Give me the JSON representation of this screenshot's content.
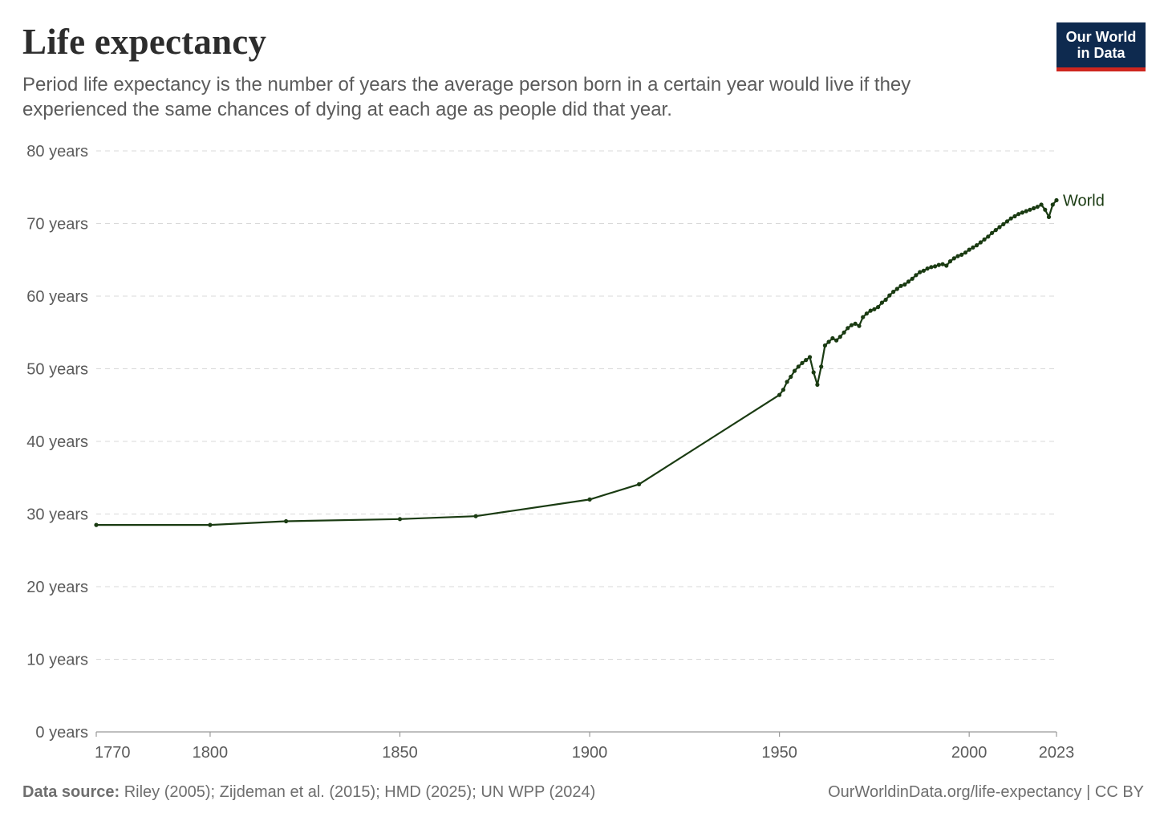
{
  "header": {
    "title": "Life expectancy",
    "subtitle": "Period life expectancy is the number of years the average person born in a certain year would live if they experienced the same chances of dying at each age as people did that year.",
    "logo_line1": "Our World",
    "logo_line2": "in Data"
  },
  "footer": {
    "source_label": "Data source:",
    "source_text": " Riley (2005); Zijdeman et al. (2015); HMD (2025); UN WPP (2024)",
    "url_text": "OurWorldinData.org/life-expectancy | CC BY"
  },
  "colors": {
    "series": "#1a3b12",
    "grid": "#d9d9d9",
    "axis": "#999999",
    "logo_bg": "#0e2a4f",
    "logo_accent": "#ce261e"
  },
  "chart_data": {
    "type": "line",
    "title": "Life expectancy",
    "xlabel": "",
    "ylabel": "",
    "xlim": [
      1770,
      2023
    ],
    "ylim": [
      0,
      80
    ],
    "x_ticks": [
      1770,
      1800,
      1850,
      1900,
      1950,
      2000,
      2023
    ],
    "y_ticks": [
      {
        "value": 0,
        "label": "0 years"
      },
      {
        "value": 10,
        "label": "10 years"
      },
      {
        "value": 20,
        "label": "20 years"
      },
      {
        "value": 30,
        "label": "30 years"
      },
      {
        "value": 40,
        "label": "40 years"
      },
      {
        "value": 50,
        "label": "50 years"
      },
      {
        "value": 60,
        "label": "60 years"
      },
      {
        "value": 70,
        "label": "70 years"
      },
      {
        "value": 80,
        "label": "80 years"
      }
    ],
    "grid": "horizontal dashed",
    "series": [
      {
        "name": "World",
        "x": [
          1770,
          1800,
          1820,
          1850,
          1870,
          1900,
          1913,
          1950,
          1951,
          1952,
          1953,
          1954,
          1955,
          1956,
          1957,
          1958,
          1959,
          1960,
          1961,
          1962,
          1963,
          1964,
          1965,
          1966,
          1967,
          1968,
          1969,
          1970,
          1971,
          1972,
          1973,
          1974,
          1975,
          1976,
          1977,
          1978,
          1979,
          1980,
          1981,
          1982,
          1983,
          1984,
          1985,
          1986,
          1987,
          1988,
          1989,
          1990,
          1991,
          1992,
          1993,
          1994,
          1995,
          1996,
          1997,
          1998,
          1999,
          2000,
          2001,
          2002,
          2003,
          2004,
          2005,
          2006,
          2007,
          2008,
          2009,
          2010,
          2011,
          2012,
          2013,
          2014,
          2015,
          2016,
          2017,
          2018,
          2019,
          2020,
          2021,
          2022,
          2023
        ],
        "y": [
          28.5,
          28.5,
          29.0,
          29.3,
          29.7,
          32.0,
          34.1,
          46.4,
          47.1,
          48.2,
          48.9,
          49.7,
          50.3,
          50.8,
          51.2,
          51.6,
          49.5,
          47.8,
          50.3,
          53.2,
          53.7,
          54.2,
          53.9,
          54.4,
          55.0,
          55.6,
          56.0,
          56.2,
          55.9,
          57.1,
          57.6,
          58.0,
          58.2,
          58.5,
          59.1,
          59.5,
          60.1,
          60.6,
          61.0,
          61.4,
          61.6,
          62.0,
          62.4,
          62.9,
          63.3,
          63.5,
          63.8,
          64.0,
          64.1,
          64.3,
          64.4,
          64.2,
          64.8,
          65.2,
          65.5,
          65.7,
          66.0,
          66.4,
          66.7,
          67.0,
          67.4,
          67.8,
          68.2,
          68.7,
          69.1,
          69.5,
          69.9,
          70.3,
          70.7,
          71.0,
          71.3,
          71.5,
          71.7,
          71.9,
          72.1,
          72.3,
          72.6,
          71.9,
          70.9,
          72.6,
          73.2
        ]
      }
    ]
  }
}
